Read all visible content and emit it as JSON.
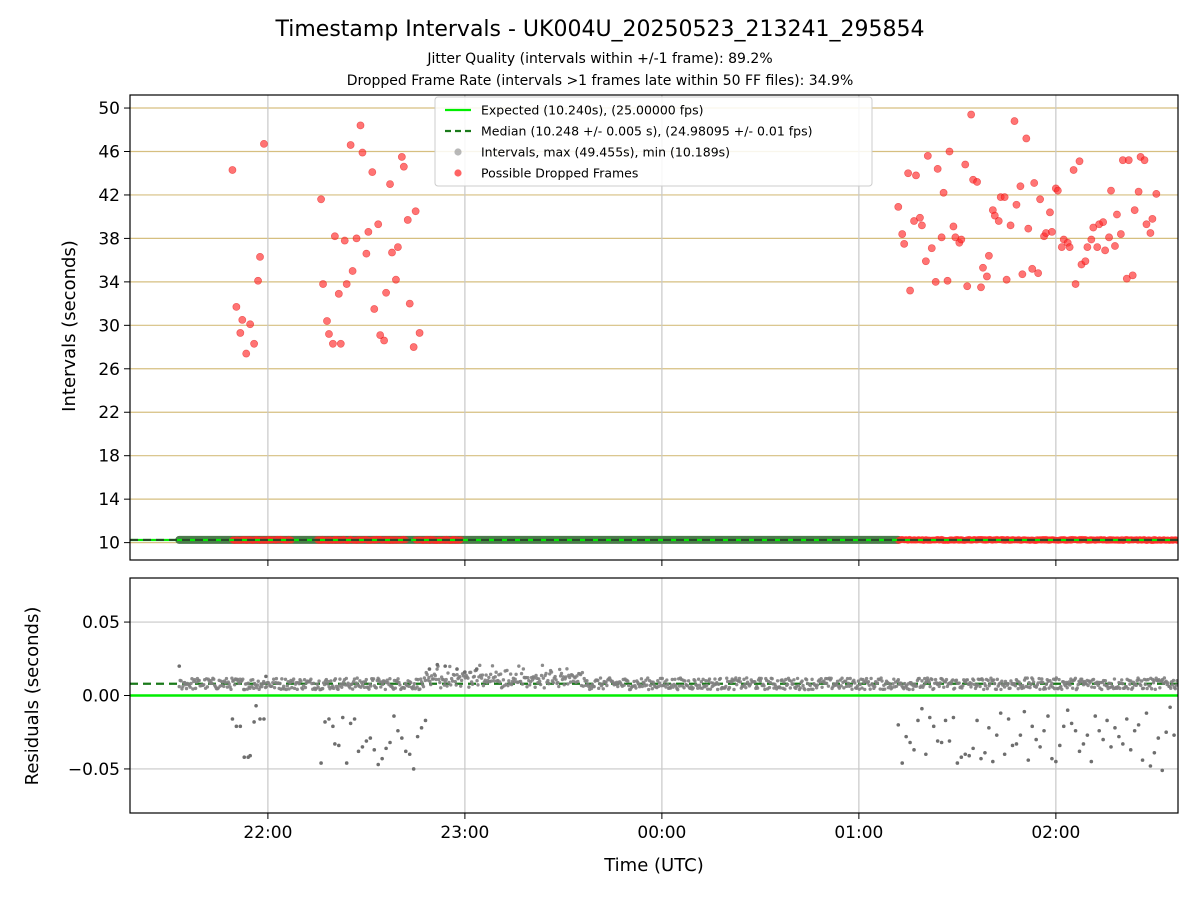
{
  "chart_data": {
    "type": "scatter",
    "title": "Timestamp Intervals - UK004U_20250523_213241_295854",
    "subtitle_lines": [
      "Jitter Quality (intervals within +/-1 frame): 89.2%",
      "Dropped Frame Rate (intervals >1 frames late within 50 FF files): 34.9%"
    ],
    "xlabel": "Time (UTC)",
    "x_tick_labels": [
      "22:00",
      "23:00",
      "00:00",
      "01:00",
      "02:00"
    ],
    "x_ticks_hours": [
      22,
      23,
      24,
      25,
      26
    ],
    "xlim_hours": [
      21.3,
      26.62
    ],
    "colors": {
      "expected": "#00ee00",
      "median": "#1a7a1a",
      "intervals": "#808080",
      "dropped": "#ff2a2a",
      "hgrid": "#d6bf80",
      "vgrid": "#c8c8c8"
    },
    "legend_placement": "upper center",
    "top_panel": {
      "ylabel": "Intervals (seconds)",
      "ylim": [
        8.4,
        51.2
      ],
      "y_ticks": [
        10,
        14,
        18,
        22,
        26,
        30,
        34,
        38,
        42,
        46,
        50
      ],
      "y_tick_labels": [
        "10",
        "14",
        "18",
        "22",
        "26",
        "30",
        "34",
        "38",
        "42",
        "46",
        "50"
      ],
      "legend": [
        {
          "label": "Expected (10.240s), (25.00000 fps)",
          "style": "solid",
          "color": "#00ee00"
        },
        {
          "label": "Median (10.248 +/- 0.005 s), (24.98095 +/- 0.01 fps)",
          "style": "dashed",
          "color": "#1a7a1a"
        },
        {
          "label": "Intervals, max (49.455s), min (10.189s)",
          "style": "marker",
          "color": "#a0a0a0"
        },
        {
          "label": "Possible Dropped Frames",
          "style": "marker",
          "color": "#ff3030"
        }
      ],
      "expected_interval": 10.24,
      "median_interval": 10.248,
      "intervals_span_hours": [
        21.55,
        25.2
      ],
      "dropped_baseline_ranges_hours": [
        [
          21.82,
          22.12
        ],
        [
          22.25,
          22.7
        ],
        [
          22.75,
          22.98
        ],
        [
          25.2,
          26.62
        ]
      ],
      "dropped_points": [
        [
          21.82,
          44.3
        ],
        [
          21.84,
          31.7
        ],
        [
          21.86,
          29.3
        ],
        [
          21.87,
          30.5
        ],
        [
          21.89,
          27.4
        ],
        [
          21.91,
          30.1
        ],
        [
          21.93,
          28.3
        ],
        [
          21.95,
          34.1
        ],
        [
          21.96,
          36.3
        ],
        [
          21.98,
          46.7
        ],
        [
          22.27,
          41.6
        ],
        [
          22.28,
          33.8
        ],
        [
          22.3,
          30.4
        ],
        [
          22.31,
          29.2
        ],
        [
          22.33,
          28.3
        ],
        [
          22.34,
          38.2
        ],
        [
          22.36,
          32.9
        ],
        [
          22.37,
          28.3
        ],
        [
          22.39,
          37.8
        ],
        [
          22.4,
          33.8
        ],
        [
          22.42,
          46.6
        ],
        [
          22.43,
          35.0
        ],
        [
          22.45,
          38.0
        ],
        [
          22.47,
          48.4
        ],
        [
          22.48,
          45.9
        ],
        [
          22.5,
          36.6
        ],
        [
          22.51,
          38.6
        ],
        [
          22.53,
          44.1
        ],
        [
          22.54,
          31.5
        ],
        [
          22.56,
          39.3
        ],
        [
          22.57,
          29.1
        ],
        [
          22.59,
          28.6
        ],
        [
          22.6,
          33.0
        ],
        [
          22.62,
          43.0
        ],
        [
          22.63,
          36.7
        ],
        [
          22.65,
          34.2
        ],
        [
          22.66,
          37.2
        ],
        [
          22.68,
          45.5
        ],
        [
          22.69,
          44.6
        ],
        [
          22.71,
          39.7
        ],
        [
          22.72,
          32.0
        ],
        [
          22.74,
          28.0
        ],
        [
          22.75,
          40.5
        ],
        [
          22.77,
          29.3
        ],
        [
          25.2,
          40.9
        ],
        [
          25.22,
          38.4
        ],
        [
          25.23,
          37.5
        ],
        [
          25.25,
          44.0
        ],
        [
          25.26,
          33.2
        ],
        [
          25.28,
          39.6
        ],
        [
          25.29,
          43.8
        ],
        [
          25.31,
          39.9
        ],
        [
          25.32,
          39.2
        ],
        [
          25.34,
          35.9
        ],
        [
          25.35,
          45.6
        ],
        [
          25.37,
          37.1
        ],
        [
          25.39,
          34.0
        ],
        [
          25.4,
          44.4
        ],
        [
          25.42,
          38.1
        ],
        [
          25.43,
          42.2
        ],
        [
          25.45,
          34.1
        ],
        [
          25.46,
          46.0
        ],
        [
          25.48,
          39.1
        ],
        [
          25.49,
          38.1
        ],
        [
          25.51,
          37.6
        ],
        [
          25.52,
          37.9
        ],
        [
          25.54,
          44.8
        ],
        [
          25.55,
          33.6
        ],
        [
          25.57,
          49.4
        ],
        [
          25.58,
          43.4
        ],
        [
          25.6,
          43.2
        ],
        [
          25.62,
          33.5
        ],
        [
          25.63,
          35.3
        ],
        [
          25.65,
          34.5
        ],
        [
          25.66,
          36.4
        ],
        [
          25.68,
          40.6
        ],
        [
          25.69,
          40.1
        ],
        [
          25.71,
          39.6
        ],
        [
          25.72,
          41.8
        ],
        [
          25.74,
          41.8
        ],
        [
          25.75,
          34.2
        ],
        [
          25.77,
          39.2
        ],
        [
          25.79,
          48.8
        ],
        [
          25.8,
          41.1
        ],
        [
          25.82,
          42.8
        ],
        [
          25.83,
          34.7
        ],
        [
          25.85,
          47.2
        ],
        [
          25.86,
          38.9
        ],
        [
          25.88,
          35.2
        ],
        [
          25.89,
          43.1
        ],
        [
          25.91,
          34.8
        ],
        [
          25.92,
          41.6
        ],
        [
          25.94,
          38.2
        ],
        [
          25.95,
          38.5
        ],
        [
          25.97,
          40.4
        ],
        [
          25.98,
          38.6
        ],
        [
          26.0,
          42.6
        ],
        [
          26.01,
          42.4
        ],
        [
          26.03,
          37.2
        ],
        [
          26.04,
          37.9
        ],
        [
          26.06,
          37.6
        ],
        [
          26.07,
          37.2
        ],
        [
          26.09,
          44.3
        ],
        [
          26.1,
          33.8
        ],
        [
          26.12,
          45.1
        ],
        [
          26.13,
          35.6
        ],
        [
          26.15,
          35.9
        ],
        [
          26.16,
          37.2
        ],
        [
          26.18,
          37.9
        ],
        [
          26.19,
          39.0
        ],
        [
          26.21,
          37.2
        ],
        [
          26.22,
          39.3
        ],
        [
          26.24,
          39.5
        ],
        [
          26.25,
          36.9
        ],
        [
          26.27,
          38.1
        ],
        [
          26.28,
          42.4
        ],
        [
          26.3,
          37.3
        ],
        [
          26.31,
          40.2
        ],
        [
          26.33,
          38.4
        ],
        [
          26.34,
          45.2
        ],
        [
          26.36,
          34.3
        ],
        [
          26.37,
          45.2
        ],
        [
          26.39,
          34.6
        ],
        [
          26.4,
          40.6
        ],
        [
          26.42,
          42.3
        ],
        [
          26.43,
          45.5
        ],
        [
          26.45,
          45.2
        ],
        [
          26.46,
          39.3
        ],
        [
          26.48,
          38.5
        ],
        [
          26.49,
          39.8
        ],
        [
          26.51,
          42.1
        ]
      ]
    },
    "bottom_panel": {
      "ylabel": "Residuals (seconds)",
      "ylim": [
        -0.08,
        0.08
      ],
      "y_ticks": [
        -0.05,
        0,
        0.05
      ],
      "y_tick_labels": [
        "−0.05",
        "0.00",
        "0.05"
      ],
      "expected_residual": 0,
      "median_residual": 0.008,
      "residual_points": [
        [
          21.55,
          0.02
        ],
        [
          21.82,
          -0.016
        ],
        [
          21.84,
          -0.021
        ],
        [
          21.86,
          -0.021
        ],
        [
          21.88,
          -0.042
        ],
        [
          21.9,
          -0.042
        ],
        [
          21.91,
          -0.041
        ],
        [
          21.93,
          -0.018
        ],
        [
          21.94,
          -0.007
        ],
        [
          21.96,
          -0.016
        ],
        [
          21.98,
          -0.016
        ],
        [
          21.99,
          0.013
        ],
        [
          22.27,
          -0.046
        ],
        [
          22.29,
          -0.018
        ],
        [
          22.31,
          -0.016
        ],
        [
          22.33,
          -0.021
        ],
        [
          22.34,
          -0.033
        ],
        [
          22.36,
          -0.034
        ],
        [
          22.38,
          -0.015
        ],
        [
          22.4,
          -0.046
        ],
        [
          22.42,
          -0.019
        ],
        [
          22.44,
          -0.016
        ],
        [
          22.46,
          -0.038
        ],
        [
          22.48,
          -0.035
        ],
        [
          22.5,
          -0.031
        ],
        [
          22.52,
          -0.029
        ],
        [
          22.54,
          -0.037
        ],
        [
          22.56,
          -0.047
        ],
        [
          22.58,
          -0.043
        ],
        [
          22.6,
          -0.036
        ],
        [
          22.62,
          -0.032
        ],
        [
          22.64,
          -0.014
        ],
        [
          22.66,
          -0.024
        ],
        [
          22.68,
          -0.029
        ],
        [
          22.7,
          -0.038
        ],
        [
          22.72,
          -0.04
        ],
        [
          22.74,
          -0.05
        ],
        [
          22.76,
          -0.028
        ],
        [
          22.78,
          -0.022
        ],
        [
          22.8,
          -0.017
        ],
        [
          22.82,
          0.018
        ],
        [
          22.86,
          0.021
        ],
        [
          22.9,
          0.02
        ],
        [
          22.96,
          0.018
        ],
        [
          23.0,
          0.016
        ],
        [
          23.06,
          0.018
        ],
        [
          25.2,
          -0.02
        ],
        [
          25.22,
          -0.046
        ],
        [
          25.24,
          -0.028
        ],
        [
          25.26,
          -0.032
        ],
        [
          25.28,
          -0.037
        ],
        [
          25.3,
          -0.017
        ],
        [
          25.32,
          -0.009
        ],
        [
          25.34,
          -0.04
        ],
        [
          25.36,
          -0.015
        ],
        [
          25.38,
          -0.021
        ],
        [
          25.4,
          -0.031
        ],
        [
          25.42,
          -0.032
        ],
        [
          25.44,
          -0.017
        ],
        [
          25.46,
          -0.031
        ],
        [
          25.48,
          -0.015
        ],
        [
          25.5,
          -0.046
        ],
        [
          25.52,
          -0.042
        ],
        [
          25.54,
          -0.04
        ],
        [
          25.56,
          -0.041
        ],
        [
          25.58,
          -0.036
        ],
        [
          25.6,
          -0.017
        ],
        [
          25.62,
          -0.043
        ],
        [
          25.64,
          -0.039
        ],
        [
          25.66,
          -0.022
        ],
        [
          25.68,
          -0.045
        ],
        [
          25.7,
          -0.027
        ],
        [
          25.72,
          -0.012
        ],
        [
          25.74,
          -0.04
        ],
        [
          25.76,
          -0.016
        ],
        [
          25.78,
          -0.034
        ],
        [
          25.8,
          -0.033
        ],
        [
          25.82,
          -0.027
        ],
        [
          25.84,
          -0.011
        ],
        [
          25.86,
          -0.044
        ],
        [
          25.88,
          -0.021
        ],
        [
          25.9,
          -0.03
        ],
        [
          25.92,
          -0.035
        ],
        [
          25.94,
          -0.024
        ],
        [
          25.96,
          -0.014
        ],
        [
          25.98,
          -0.043
        ],
        [
          26.0,
          -0.045
        ],
        [
          26.02,
          -0.034
        ],
        [
          26.04,
          -0.021
        ],
        [
          26.06,
          -0.01
        ],
        [
          26.08,
          -0.019
        ],
        [
          26.1,
          -0.024
        ],
        [
          26.12,
          -0.038
        ],
        [
          26.14,
          -0.033
        ],
        [
          26.16,
          -0.027
        ],
        [
          26.18,
          -0.045
        ],
        [
          26.2,
          -0.014
        ],
        [
          26.22,
          -0.024
        ],
        [
          26.24,
          -0.03
        ],
        [
          26.26,
          -0.017
        ],
        [
          26.28,
          -0.035
        ],
        [
          26.3,
          -0.022
        ],
        [
          26.32,
          -0.028
        ],
        [
          26.34,
          -0.033
        ],
        [
          26.36,
          -0.016
        ],
        [
          26.38,
          -0.037
        ],
        [
          26.4,
          -0.024
        ],
        [
          26.42,
          -0.02
        ],
        [
          26.44,
          -0.044
        ],
        [
          26.46,
          -0.012
        ],
        [
          26.48,
          -0.048
        ],
        [
          26.5,
          -0.039
        ],
        [
          26.52,
          -0.029
        ],
        [
          26.54,
          -0.051
        ],
        [
          26.56,
          -0.025
        ],
        [
          26.58,
          -0.008
        ],
        [
          26.6,
          -0.027
        ]
      ],
      "residual_band": {
        "center": 0.008,
        "spread": 0.004,
        "hump_hours": [
          22.8,
          23.6
        ],
        "hump_extra": 0.01,
        "span_hours": [
          21.55,
          26.62
        ]
      }
    }
  }
}
